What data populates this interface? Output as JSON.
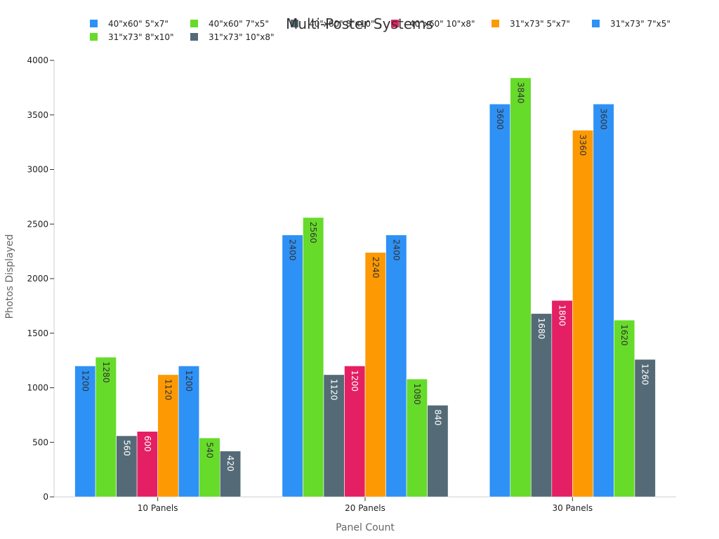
{
  "chart_data": {
    "type": "bar",
    "title": "Multi-Poster Systems",
    "xlabel": "Panel Count",
    "ylabel": "Photos Displayed",
    "categories": [
      "10 Panels",
      "20 Panels",
      "30 Panels"
    ],
    "ylim": [
      0,
      4000
    ],
    "yticks": [
      0,
      500,
      1000,
      1500,
      2000,
      2500,
      3000,
      3500,
      4000
    ],
    "grid": false,
    "legend_position": "top",
    "series": [
      {
        "name": "40\"x60\" 5\"x7\"",
        "color": "#2e91f5",
        "label_color": "#333333",
        "values": [
          1200,
          2400,
          3600
        ]
      },
      {
        "name": "40\"x60\" 7\"x5\"",
        "color": "#66db2a",
        "label_color": "#333333",
        "values": [
          1280,
          2560,
          3840
        ]
      },
      {
        "name": "40\"x60\" 8\"x10\"",
        "color": "#546b77",
        "label_color": "#ffffff",
        "values": [
          560,
          1120,
          1680
        ]
      },
      {
        "name": "40\"x60\" 10\"x8\"",
        "color": "#e51f63",
        "label_color": "#ffffff",
        "values": [
          600,
          1200,
          1800
        ]
      },
      {
        "name": "31\"x73\" 5\"x7\"",
        "color": "#fd9a03",
        "label_color": "#333333",
        "values": [
          1120,
          2240,
          3360
        ]
      },
      {
        "name": "31\"x73\" 7\"x5\"",
        "color": "#2e91f5",
        "label_color": "#333333",
        "values": [
          1200,
          2400,
          3600
        ]
      },
      {
        "name": "31\"x73\" 8\"x10\"",
        "color": "#66db2a",
        "label_color": "#333333",
        "values": [
          540,
          1080,
          1620
        ]
      },
      {
        "name": "31\"x73\" 10\"x8\"",
        "color": "#546b77",
        "label_color": "#ffffff",
        "values": [
          420,
          840,
          1260
        ]
      }
    ]
  }
}
